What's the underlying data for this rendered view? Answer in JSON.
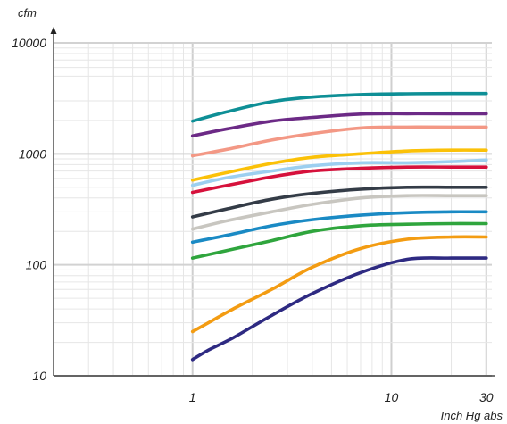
{
  "chart_data": {
    "type": "line",
    "title": "",
    "xlabel": "Inch Hg abs",
    "ylabel": "cfm",
    "x_scale": "log",
    "y_scale": "log",
    "xlim": [
      0.2,
      32
    ],
    "ylim": [
      10,
      10000
    ],
    "x_ticks": [
      {
        "value": 1,
        "label": "1"
      },
      {
        "value": 10,
        "label": "10"
      },
      {
        "value": 30,
        "label": "30"
      }
    ],
    "y_ticks": [
      {
        "value": 10,
        "label": "10"
      },
      {
        "value": 100,
        "label": "100"
      },
      {
        "value": 1000,
        "label": "1000"
      },
      {
        "value": 10000,
        "label": "10000"
      }
    ],
    "grid": true,
    "series": [
      {
        "color": "#0e8f96",
        "points": [
          [
            1,
            1970
          ],
          [
            1.5,
            2400
          ],
          [
            2.5,
            2950
          ],
          [
            4,
            3250
          ],
          [
            7,
            3420
          ],
          [
            12,
            3480
          ],
          [
            20,
            3500
          ],
          [
            30,
            3500
          ]
        ]
      },
      {
        "color": "#6c2a86",
        "points": [
          [
            1,
            1450
          ],
          [
            1.5,
            1680
          ],
          [
            2.5,
            1970
          ],
          [
            4,
            2130
          ],
          [
            7,
            2280
          ],
          [
            12,
            2300
          ],
          [
            20,
            2300
          ],
          [
            30,
            2300
          ]
        ]
      },
      {
        "color": "#f39885",
        "points": [
          [
            1,
            960
          ],
          [
            1.5,
            1100
          ],
          [
            2.5,
            1330
          ],
          [
            4,
            1520
          ],
          [
            7,
            1710
          ],
          [
            12,
            1740
          ],
          [
            20,
            1740
          ],
          [
            30,
            1740
          ]
        ]
      },
      {
        "color": "#fbc108",
        "points": [
          [
            1,
            580
          ],
          [
            1.5,
            680
          ],
          [
            2.5,
            820
          ],
          [
            4,
            930
          ],
          [
            7,
            1000
          ],
          [
            12,
            1060
          ],
          [
            20,
            1080
          ],
          [
            30,
            1080
          ]
        ]
      },
      {
        "color": "#9ccff0",
        "points": [
          [
            1,
            520
          ],
          [
            1.5,
            610
          ],
          [
            2.5,
            700
          ],
          [
            4,
            780
          ],
          [
            7,
            830
          ],
          [
            12,
            830
          ],
          [
            20,
            850
          ],
          [
            30,
            880
          ]
        ]
      },
      {
        "color": "#d6113c",
        "points": [
          [
            1,
            450
          ],
          [
            1.5,
            520
          ],
          [
            2.5,
            620
          ],
          [
            4,
            700
          ],
          [
            7,
            740
          ],
          [
            12,
            760
          ],
          [
            20,
            760
          ],
          [
            30,
            760
          ]
        ]
      },
      {
        "color": "#343c47",
        "points": [
          [
            1,
            270
          ],
          [
            1.5,
            320
          ],
          [
            2.5,
            390
          ],
          [
            4,
            440
          ],
          [
            7,
            480
          ],
          [
            12,
            500
          ],
          [
            20,
            500
          ],
          [
            30,
            500
          ]
        ]
      },
      {
        "color": "#c8c6c0",
        "points": [
          [
            1,
            210
          ],
          [
            1.5,
            250
          ],
          [
            2.5,
            300
          ],
          [
            4,
            350
          ],
          [
            7,
            400
          ],
          [
            12,
            420
          ],
          [
            20,
            420
          ],
          [
            30,
            420
          ]
        ]
      },
      {
        "color": "#1a8ac4",
        "points": [
          [
            1,
            160
          ],
          [
            1.5,
            185
          ],
          [
            2.5,
            225
          ],
          [
            4,
            255
          ],
          [
            7,
            280
          ],
          [
            12,
            295
          ],
          [
            20,
            300
          ],
          [
            30,
            300
          ]
        ]
      },
      {
        "color": "#2fa53d",
        "points": [
          [
            1,
            115
          ],
          [
            1.5,
            135
          ],
          [
            2.5,
            165
          ],
          [
            4,
            200
          ],
          [
            7,
            225
          ],
          [
            12,
            232
          ],
          [
            20,
            235
          ],
          [
            30,
            235
          ]
        ]
      },
      {
        "color": "#f39c12",
        "points": [
          [
            1,
            25
          ],
          [
            1.2,
            30
          ],
          [
            1.6,
            40
          ],
          [
            2.5,
            60
          ],
          [
            4,
            95
          ],
          [
            7,
            140
          ],
          [
            12,
            170
          ],
          [
            20,
            178
          ],
          [
            30,
            178
          ]
        ]
      },
      {
        "color": "#2e2a82",
        "points": [
          [
            1,
            14
          ],
          [
            1.2,
            17
          ],
          [
            1.6,
            22
          ],
          [
            2.5,
            35
          ],
          [
            4,
            55
          ],
          [
            7,
            85
          ],
          [
            12,
            112
          ],
          [
            20,
            115
          ],
          [
            30,
            115
          ]
        ]
      }
    ]
  }
}
